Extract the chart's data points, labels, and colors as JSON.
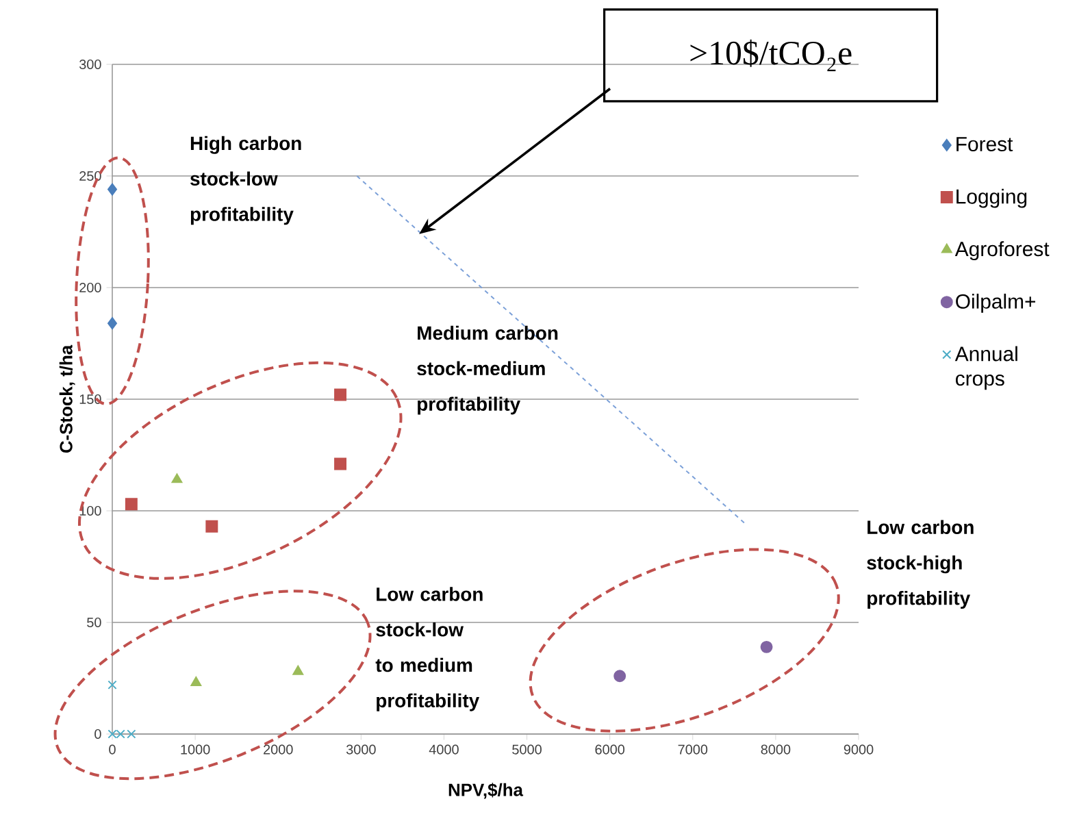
{
  "chart_data": {
    "type": "scatter",
    "xlabel": "NPV,$/ha",
    "ylabel": "C-Stock, t/ha",
    "xlim": [
      0,
      9000
    ],
    "ylim": [
      0,
      300
    ],
    "xticks": [
      0,
      1000,
      2000,
      3000,
      4000,
      5000,
      6000,
      7000,
      8000,
      9000
    ],
    "yticks": [
      0,
      50,
      100,
      150,
      200,
      250,
      300
    ],
    "grid": "y",
    "legend": "right",
    "series": [
      {
        "name": "Forest",
        "color": "#4a7ebb",
        "marker": "diamond",
        "x": [
          0,
          0
        ],
        "values": [
          244,
          184
        ]
      },
      {
        "name": "Logging",
        "color": "#c0504d",
        "marker": "square",
        "x": [
          230,
          1200,
          2750,
          2750
        ],
        "values": [
          103,
          93,
          152,
          121
        ]
      },
      {
        "name": "Agroforest",
        "color": "#9bbb59",
        "marker": "triangle",
        "x": [
          780,
          1010,
          2240
        ],
        "values": [
          114,
          23,
          28
        ]
      },
      {
        "name": "Oilpalm+",
        "color": "#8064a2",
        "marker": "circle",
        "x": [
          6120,
          7890
        ],
        "values": [
          26,
          39
        ]
      },
      {
        "name": "Annual crops",
        "color": "#4bacc6",
        "marker": "cross",
        "x": [
          0,
          0,
          100,
          230
        ],
        "values": [
          22,
          0,
          0,
          0
        ]
      },
      {
        "type": "line",
        "color": "#7ba0d8",
        "line_style": "dashed",
        "marker": "none",
        "x": [
          2950,
          7640
        ],
        "values": [
          250,
          94
        ]
      }
    ],
    "annotations": [
      ">10$/tCO₂e",
      "High carbon stock-low profitability",
      "Medium carbon stock-medium profitability",
      "Low carbon stock-low to medium profitability",
      "Low carbon stock-high profitability"
    ]
  }
}
